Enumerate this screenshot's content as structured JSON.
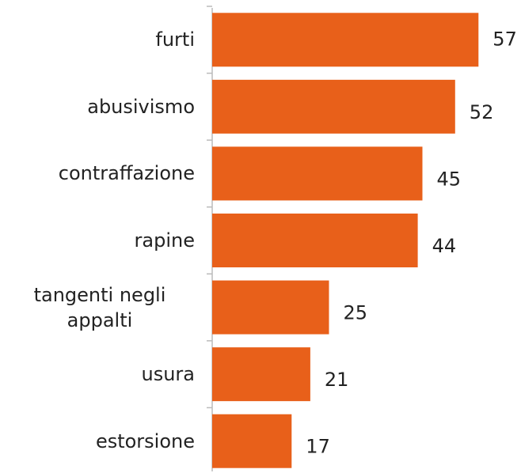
{
  "chart_data": {
    "type": "bar",
    "orientation": "horizontal",
    "categories": [
      "furti",
      "abusivismo",
      "contraffazione",
      "rapine",
      "tangenti negli appalti",
      "usura",
      "estorsione"
    ],
    "values": [
      57,
      52,
      45,
      44,
      25,
      21,
      17
    ],
    "color": "#e8601a",
    "xlim": [
      0,
      60
    ]
  }
}
